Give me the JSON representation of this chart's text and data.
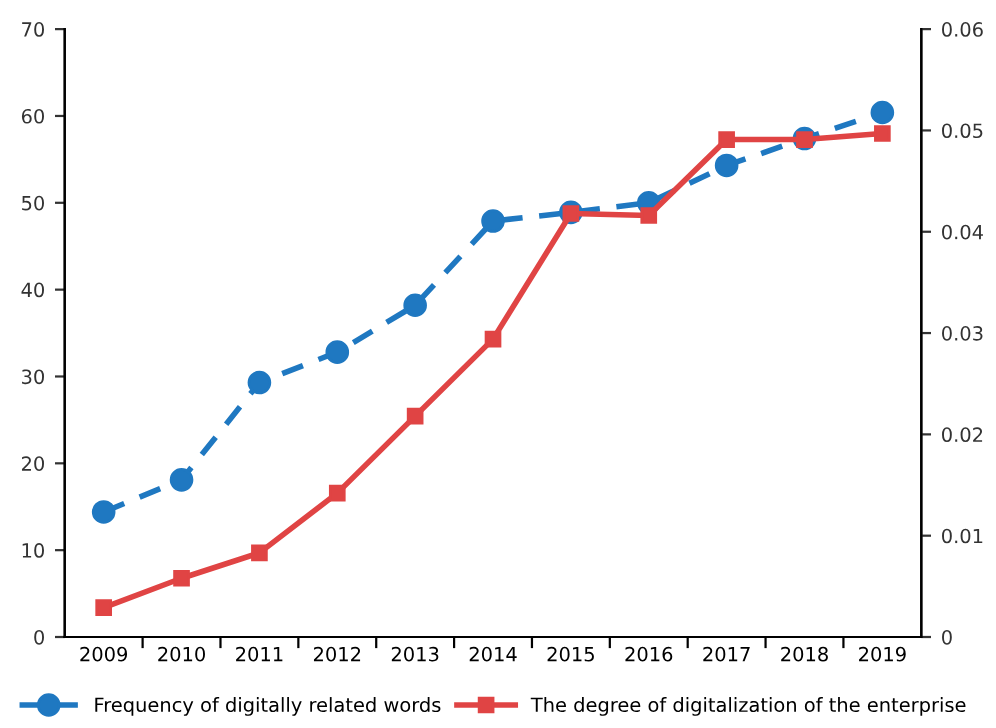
{
  "chart_data": {
    "type": "line",
    "categories": [
      "2009",
      "2010",
      "2011",
      "2012",
      "2013",
      "2014",
      "2015",
      "2016",
      "2017",
      "2018",
      "2019"
    ],
    "series": [
      {
        "name": "Frequency of digitally related words",
        "color": "#1f78c1",
        "marker": "circle",
        "line_style": "dashed",
        "values": [
          14.4,
          18.1,
          29.3,
          32.8,
          38.2,
          47.9,
          48.9,
          50.0,
          54.3,
          57.4,
          60.4
        ]
      },
      {
        "name": "The degree of digitalization of the enterprise",
        "color": "#e04444",
        "marker": "square",
        "line_style": "solid",
        "axis": "y2",
        "values": [
          0.0029,
          0.0058,
          0.0083,
          0.0142,
          0.0218,
          0.0294,
          0.0418,
          0.0416,
          0.0491,
          0.0491,
          0.0497
        ]
      }
    ],
    "ylim": [
      0,
      70
    ],
    "yticks": [
      0,
      10,
      20,
      30,
      40,
      50,
      60,
      70
    ],
    "y2lim": [
      0,
      0.06
    ],
    "y2ticks": [
      0,
      0.01,
      0.02,
      0.03,
      0.04,
      0.05,
      0.06
    ],
    "grid": false,
    "legend": "bottom"
  }
}
